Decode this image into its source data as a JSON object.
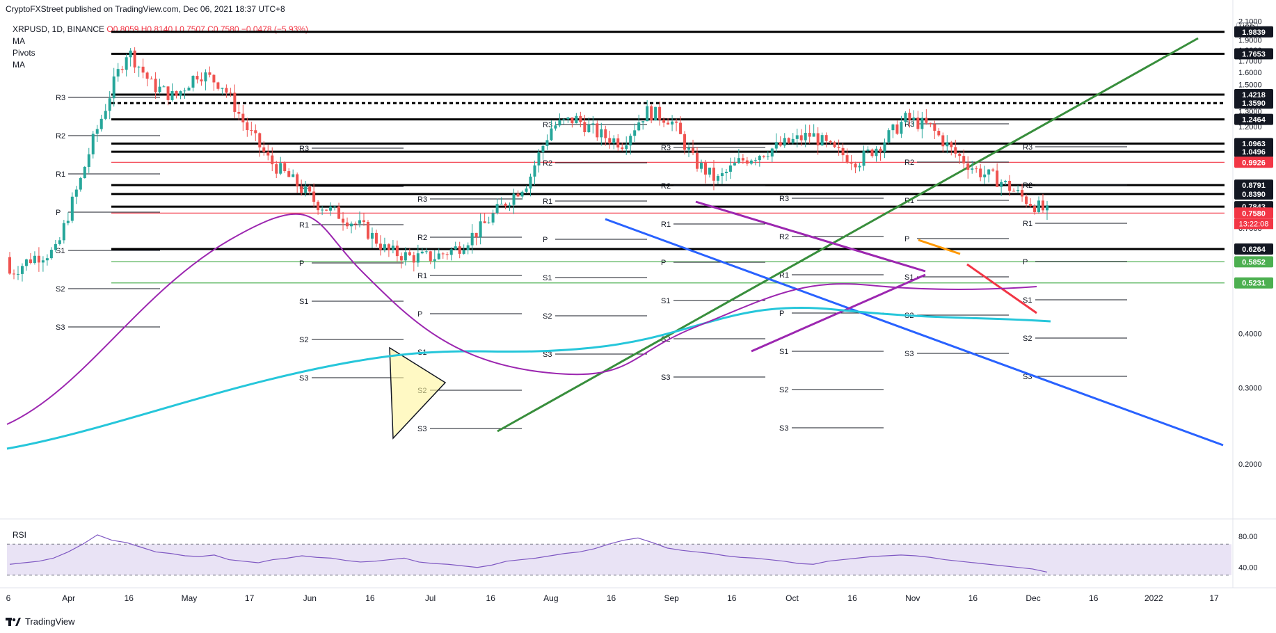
{
  "header": {
    "published": "CryptoFXStreet published on TradingView.com, Dec 06, 2021 18:37 UTC+8"
  },
  "legend": {
    "symbol": "XRPUSD, 1D, BINANCE",
    "ohlc": "O0.8059 H0.8140 L0.7507 C0.7580 −0.0478 (−5.93%)",
    "indicators": [
      "MA",
      "Pivots",
      "MA"
    ]
  },
  "currency_button": "USD",
  "rsi": {
    "label": "RSI",
    "levels": [
      "80.00",
      "40.00"
    ]
  },
  "footer": {
    "brand": "TradingView"
  },
  "colors": {
    "up": "#26a69a",
    "down": "#ef5350",
    "ma_purple": "#9c27b0",
    "ma_cyan": "#26c6da",
    "trend_green": "#388e3c",
    "trend_blue": "#2962ff",
    "trend_purple": "#9c27b0",
    "orange": "#ff9800",
    "rsi_line": "#7e57c2",
    "rsi_band": "#e9e3f5"
  },
  "chart_data": {
    "type": "line",
    "title": "",
    "x_ticks": [
      "6",
      "Apr",
      "16",
      "May",
      "17",
      "Jun",
      "16",
      "Jul",
      "16",
      "Aug",
      "16",
      "Sep",
      "16",
      "Oct",
      "16",
      "Nov",
      "16",
      "Dec",
      "16",
      "2022",
      "17"
    ],
    "y_ticks": [
      "2.1000",
      "2.0000",
      "1.9000",
      "1.8000",
      "1.7000",
      "1.6000",
      "1.5000",
      "1.3000",
      "1.2000",
      "0.7000",
      "0.4000",
      "0.3000",
      "0.2000"
    ],
    "ylim": [
      0.15,
      2.15
    ],
    "y_scale": "log",
    "price_levels": [
      {
        "value": 1.9839,
        "label": "1.9839",
        "color": "#000000"
      },
      {
        "value": 1.7653,
        "label": "1.7653",
        "color": "#000000"
      },
      {
        "value": 1.4218,
        "label": "1.4218",
        "color": "#000000"
      },
      {
        "value": 1.359,
        "label": "1.3590",
        "color": "#000000"
      },
      {
        "value": 1.2464,
        "label": "1.2464",
        "color": "#000000"
      },
      {
        "value": 1.0963,
        "label": "1.0963",
        "color": "#000000"
      },
      {
        "value": 1.0496,
        "label": "1.0496",
        "color": "#000000"
      },
      {
        "value": 0.9926,
        "label": "0.9926",
        "color": "#f23645"
      },
      {
        "value": 0.8791,
        "label": "0.8791",
        "color": "#000000"
      },
      {
        "value": 0.839,
        "label": "0.8390",
        "color": "#000000"
      },
      {
        "value": 0.7843,
        "label": "0.7843",
        "color": "#000000"
      },
      {
        "value": 0.758,
        "label": "0.7580",
        "color": "#f23645"
      },
      {
        "value": 0.6264,
        "label": "0.6264",
        "color": "#000000"
      },
      {
        "value": 0.5852,
        "label": "0.5852",
        "color": "#4caf50"
      },
      {
        "value": 0.5231,
        "label": "0.5231",
        "color": "#4caf50"
      }
    ],
    "countdown": "13:22:08",
    "pivot_labels": [
      "R3",
      "R2",
      "R1",
      "P",
      "S1",
      "S2",
      "S3"
    ],
    "series": [
      {
        "name": "RSI",
        "values": [
          44,
          46,
          48,
          52,
          60,
          70,
          82,
          75,
          72,
          66,
          60,
          58,
          55,
          54,
          56,
          50,
          48,
          46,
          50,
          52,
          55,
          53,
          52,
          49,
          47,
          48,
          50,
          52,
          47,
          45,
          44,
          42,
          40,
          43,
          48,
          50,
          52,
          55,
          58,
          60,
          64,
          70,
          75,
          78,
          72,
          65,
          62,
          60,
          58,
          55,
          53,
          52,
          50,
          48,
          45,
          44,
          48,
          50,
          52,
          54,
          55,
          56,
          55,
          53,
          50,
          48,
          46,
          44,
          42,
          40,
          38,
          34
        ]
      }
    ]
  }
}
